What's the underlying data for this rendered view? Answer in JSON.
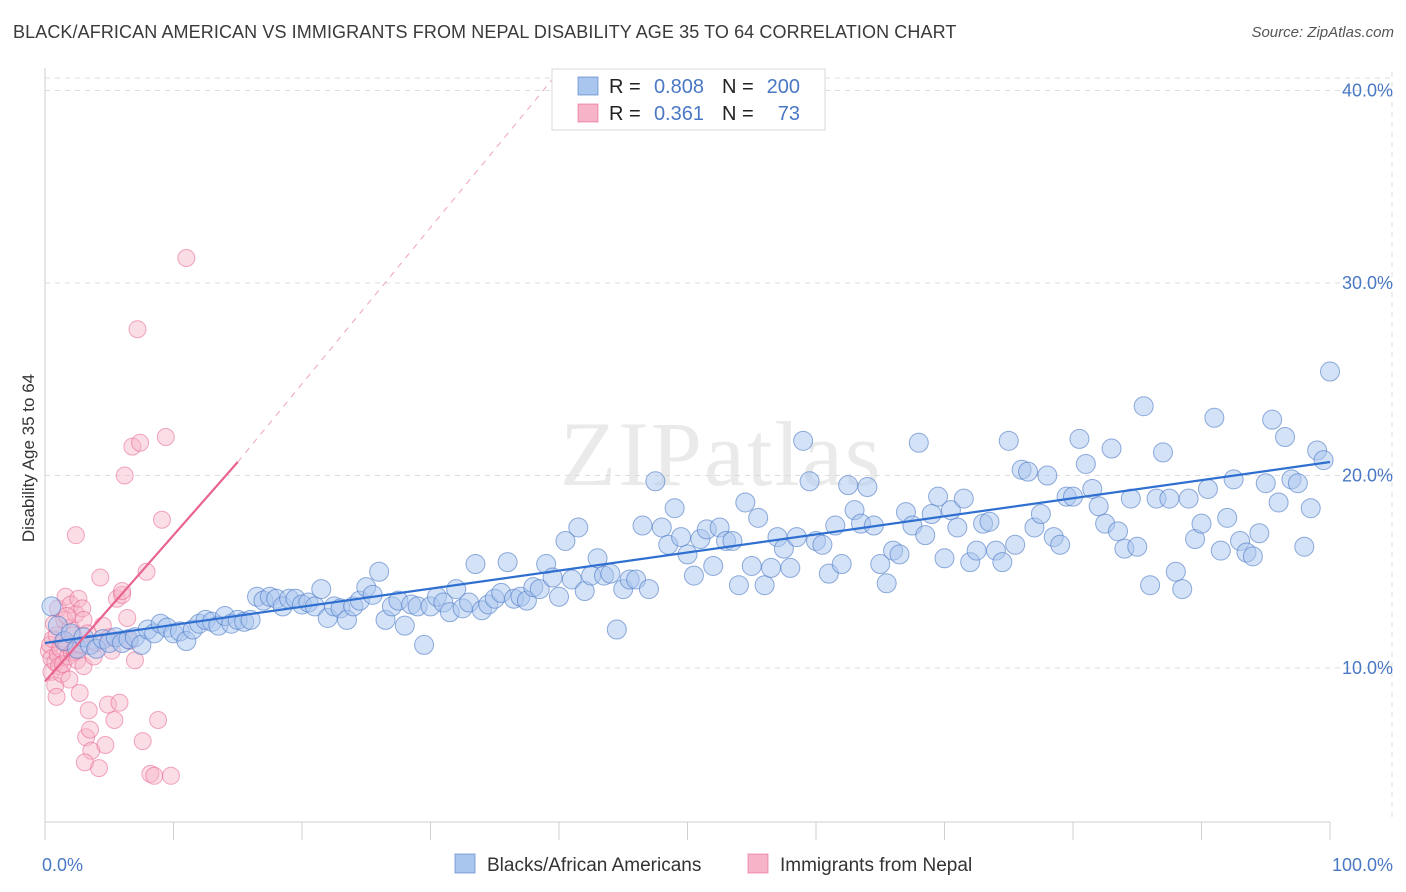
{
  "title": "BLACK/AFRICAN AMERICAN VS IMMIGRANTS FROM NEPAL DISABILITY AGE 35 TO 64 CORRELATION CHART",
  "source": "Source: ZipAtlas.com",
  "watermark": "ZIPatlas",
  "colors": {
    "blue": "#4a78c4",
    "blue_fill": "#a9c6ef",
    "blue_line": "#2f6fd0",
    "pink_fill": "#f7b3c8",
    "pink_line": "#e8638f",
    "grid": "#dcdcdc"
  },
  "legend_top": {
    "rows": [
      {
        "r_label": "R =",
        "r_value": "0.808",
        "n_label": "N =",
        "n_value": "200",
        "color": "blue"
      },
      {
        "r_label": "R =",
        "r_value": "0.361",
        "n_label": "N =",
        "n_value": "73",
        "color": "pink"
      }
    ]
  },
  "legend_bottom": {
    "items": [
      {
        "label": "Blacks/African Americans",
        "color": "blue"
      },
      {
        "label": "Immigrants from Nepal",
        "color": "pink"
      }
    ]
  },
  "chart_data": {
    "type": "scatter",
    "ylabel": "Disability Age 35 to 64",
    "xlim": [
      0,
      100
    ],
    "ylim": [
      2,
      42
    ],
    "y_ticks": [
      {
        "v": 10,
        "label": "10.0%"
      },
      {
        "v": 20,
        "label": "20.0%"
      },
      {
        "v": 30,
        "label": "30.0%"
      },
      {
        "v": 40,
        "label": "40.0%"
      }
    ],
    "x_tick_labels": [
      {
        "v": 0,
        "label": "0.0%"
      },
      {
        "v": 100,
        "label": "100.0%"
      }
    ],
    "series": [
      {
        "name": "Blacks/African Americans",
        "color": "blue",
        "trend": {
          "x": [
            0,
            100
          ],
          "y": [
            11.3,
            20.7
          ],
          "style": "solid"
        },
        "points": [
          [
            0.5,
            13.2
          ],
          [
            1,
            12.2
          ],
          [
            1.5,
            11.4
          ],
          [
            2,
            11.8
          ],
          [
            2.5,
            11
          ],
          [
            3,
            11.6
          ],
          [
            3.5,
            11.2
          ],
          [
            4,
            11
          ],
          [
            4.5,
            11.5
          ],
          [
            5,
            11.3
          ],
          [
            5.5,
            11.6
          ],
          [
            6,
            11.3
          ],
          [
            6.5,
            11.5
          ],
          [
            7,
            11.6
          ],
          [
            7.5,
            11.2
          ],
          [
            8,
            12
          ],
          [
            8.5,
            11.8
          ],
          [
            9,
            12.3
          ],
          [
            9.5,
            12.1
          ],
          [
            10,
            11.8
          ],
          [
            10.5,
            11.9
          ],
          [
            11,
            11.4
          ],
          [
            11.5,
            12
          ],
          [
            12,
            12.3
          ],
          [
            12.5,
            12.5
          ],
          [
            13,
            12.4
          ],
          [
            13.5,
            12.2
          ],
          [
            14,
            12.7
          ],
          [
            14.5,
            12.3
          ],
          [
            15,
            12.5
          ],
          [
            15.5,
            12.4
          ],
          [
            16,
            12.5
          ],
          [
            16.5,
            13.7
          ],
          [
            17,
            13.5
          ],
          [
            17.5,
            13.7
          ],
          [
            18,
            13.6
          ],
          [
            18.5,
            13.2
          ],
          [
            19,
            13.6
          ],
          [
            19.5,
            13.6
          ],
          [
            20,
            13.3
          ],
          [
            20.5,
            13.4
          ],
          [
            21,
            13.2
          ],
          [
            21.5,
            14.1
          ],
          [
            22,
            12.6
          ],
          [
            22.5,
            13.2
          ],
          [
            23,
            13.1
          ],
          [
            23.5,
            12.5
          ],
          [
            24,
            13.2
          ],
          [
            24.5,
            13.5
          ],
          [
            25,
            14.2
          ],
          [
            25.5,
            13.8
          ],
          [
            26,
            15
          ],
          [
            26.5,
            12.5
          ],
          [
            27,
            13.2
          ],
          [
            27.5,
            13.5
          ],
          [
            28,
            12.2
          ],
          [
            28.5,
            13.3
          ],
          [
            29,
            13.2
          ],
          [
            29.5,
            11.2
          ],
          [
            30,
            13.2
          ],
          [
            30.5,
            13.7
          ],
          [
            31,
            13.4
          ],
          [
            31.5,
            12.9
          ],
          [
            32,
            14.1
          ],
          [
            32.5,
            13.1
          ],
          [
            33,
            13.4
          ],
          [
            33.5,
            15.4
          ],
          [
            34,
            13
          ],
          [
            34.5,
            13.3
          ],
          [
            35,
            13.6
          ],
          [
            35.5,
            13.9
          ],
          [
            36,
            15.5
          ],
          [
            36.5,
            13.6
          ],
          [
            37,
            13.7
          ],
          [
            37.5,
            13.5
          ],
          [
            38,
            14.2
          ],
          [
            38.5,
            14.1
          ],
          [
            39,
            15.4
          ],
          [
            39.5,
            14.7
          ],
          [
            40,
            13.7
          ],
          [
            40.5,
            16.6
          ],
          [
            41,
            14.6
          ],
          [
            41.5,
            17.3
          ],
          [
            42,
            14
          ],
          [
            42.5,
            14.8
          ],
          [
            43,
            15.7
          ],
          [
            43.5,
            14.8
          ],
          [
            44,
            14.9
          ],
          [
            44.5,
            12
          ],
          [
            45,
            14.1
          ],
          [
            45.5,
            14.6
          ],
          [
            46,
            14.6
          ],
          [
            46.5,
            17.4
          ],
          [
            47,
            14.1
          ],
          [
            47.5,
            19.7
          ],
          [
            48,
            17.3
          ],
          [
            48.5,
            16.4
          ],
          [
            49,
            18.3
          ],
          [
            49.5,
            16.8
          ],
          [
            50,
            15.9
          ],
          [
            50.5,
            14.8
          ],
          [
            51,
            16.7
          ],
          [
            51.5,
            17.2
          ],
          [
            52,
            15.3
          ],
          [
            52.5,
            17.3
          ],
          [
            53,
            16.6
          ],
          [
            53.5,
            16.6
          ],
          [
            54,
            14.3
          ],
          [
            54.5,
            18.6
          ],
          [
            55,
            15.3
          ],
          [
            55.5,
            17.8
          ],
          [
            56,
            14.3
          ],
          [
            56.5,
            15.2
          ],
          [
            57,
            16.8
          ],
          [
            57.5,
            16.2
          ],
          [
            58,
            15.2
          ],
          [
            58.5,
            16.8
          ],
          [
            59,
            21.8
          ],
          [
            59.5,
            19.7
          ],
          [
            60,
            16.6
          ],
          [
            60.5,
            16.4
          ],
          [
            61,
            14.9
          ],
          [
            61.5,
            17.4
          ],
          [
            62,
            15.4
          ],
          [
            62.5,
            19.5
          ],
          [
            63,
            18.2
          ],
          [
            63.5,
            17.5
          ],
          [
            64,
            19.4
          ],
          [
            64.5,
            17.4
          ],
          [
            65,
            15.4
          ],
          [
            65.5,
            14.4
          ],
          [
            66,
            16.1
          ],
          [
            66.5,
            15.9
          ],
          [
            67,
            18.1
          ],
          [
            67.5,
            17.4
          ],
          [
            68,
            21.7
          ],
          [
            68.5,
            16.9
          ],
          [
            69,
            18
          ],
          [
            69.5,
            18.9
          ],
          [
            70,
            15.7
          ],
          [
            70.5,
            18.2
          ],
          [
            71,
            17.3
          ],
          [
            71.5,
            18.8
          ],
          [
            72,
            15.5
          ],
          [
            72.5,
            16.1
          ],
          [
            73,
            17.5
          ],
          [
            73.5,
            17.6
          ],
          [
            74,
            16.1
          ],
          [
            74.5,
            15.5
          ],
          [
            75,
            21.8
          ],
          [
            75.5,
            16.4
          ],
          [
            76,
            20.3
          ],
          [
            76.5,
            20.2
          ],
          [
            77,
            17.3
          ],
          [
            77.5,
            18
          ],
          [
            78,
            20
          ],
          [
            78.5,
            16.8
          ],
          [
            79,
            16.4
          ],
          [
            79.5,
            18.9
          ],
          [
            80,
            18.9
          ],
          [
            80.5,
            21.9
          ],
          [
            81,
            20.6
          ],
          [
            81.5,
            19.3
          ],
          [
            82,
            18.4
          ],
          [
            82.5,
            17.5
          ],
          [
            83,
            21.4
          ],
          [
            83.5,
            17.1
          ],
          [
            84,
            16.2
          ],
          [
            84.5,
            18.8
          ],
          [
            85,
            16.3
          ],
          [
            85.5,
            23.6
          ],
          [
            86,
            14.3
          ],
          [
            86.5,
            18.8
          ],
          [
            87,
            21.2
          ],
          [
            87.5,
            18.8
          ],
          [
            88,
            15
          ],
          [
            88.5,
            14.1
          ],
          [
            89,
            18.8
          ],
          [
            89.5,
            16.7
          ],
          [
            90,
            17.5
          ],
          [
            90.5,
            19.3
          ],
          [
            91,
            23
          ],
          [
            91.5,
            16.1
          ],
          [
            92,
            17.8
          ],
          [
            92.5,
            19.8
          ],
          [
            93,
            16.6
          ],
          [
            93.5,
            16
          ],
          [
            94,
            15.8
          ],
          [
            94.5,
            17
          ],
          [
            95,
            19.6
          ],
          [
            95.5,
            22.9
          ],
          [
            96,
            18.6
          ],
          [
            96.5,
            22
          ],
          [
            97,
            19.8
          ],
          [
            97.5,
            19.6
          ],
          [
            98,
            16.3
          ],
          [
            98.5,
            18.3
          ],
          [
            99,
            21.3
          ],
          [
            99.5,
            20.8
          ],
          [
            100,
            25.4
          ]
        ]
      },
      {
        "name": "Immigrants from Nepal",
        "color": "pink",
        "trend": {
          "x": [
            0,
            15
          ],
          "y": [
            9.3,
            20.7
          ],
          "style": "solid",
          "extension": {
            "x": [
              15,
              40
            ],
            "y": [
              20.7,
              41
            ]
          }
        },
        "points": [
          [
            0.3,
            10.9
          ],
          [
            0.4,
            11.2
          ],
          [
            0.5,
            10.5
          ],
          [
            0.5,
            9.8
          ],
          [
            0.6,
            11.5
          ],
          [
            0.7,
            12.3
          ],
          [
            0.8,
            10.3
          ],
          [
            0.8,
            9.1
          ],
          [
            0.9,
            11.7
          ],
          [
            1,
            13.1
          ],
          [
            1,
            10.7
          ],
          [
            1.1,
            10.1
          ],
          [
            1.2,
            11
          ],
          [
            1.3,
            9.7
          ],
          [
            1.4,
            10.2
          ],
          [
            1.5,
            12.5
          ],
          [
            1.5,
            11.4
          ],
          [
            1.6,
            13.7
          ],
          [
            1.7,
            11.2
          ],
          [
            1.8,
            10.6
          ],
          [
            1.9,
            9.4
          ],
          [
            2,
            12.1
          ],
          [
            2,
            13.3
          ],
          [
            2.1,
            10.8
          ],
          [
            2.2,
            11.7
          ],
          [
            2.3,
            10.9
          ],
          [
            2.4,
            12.8
          ],
          [
            2.5,
            10.4
          ],
          [
            2.6,
            13.6
          ],
          [
            2.7,
            8.7
          ],
          [
            2.8,
            11.2
          ],
          [
            2.9,
            13.1
          ],
          [
            3,
            12.5
          ],
          [
            3,
            10.1
          ],
          [
            3.2,
            6.4
          ],
          [
            3.3,
            11.8
          ],
          [
            3.4,
            7.8
          ],
          [
            3.5,
            6.8
          ],
          [
            3.6,
            5.7
          ],
          [
            3.8,
            10.6
          ],
          [
            4,
            11.3
          ],
          [
            4.2,
            4.8
          ],
          [
            4.3,
            14.7
          ],
          [
            4.5,
            12.2
          ],
          [
            4.7,
            6
          ],
          [
            4.9,
            8.1
          ],
          [
            5,
            11.6
          ],
          [
            5.2,
            10.9
          ],
          [
            5.4,
            7.3
          ],
          [
            5.6,
            13.6
          ],
          [
            5.8,
            8.2
          ],
          [
            6,
            13.8
          ],
          [
            6.2,
            20
          ],
          [
            6.4,
            12.6
          ],
          [
            6.6,
            11.4
          ],
          [
            6.8,
            21.5
          ],
          [
            7,
            10.4
          ],
          [
            7.2,
            27.6
          ],
          [
            7.4,
            21.7
          ],
          [
            7.6,
            6.2
          ],
          [
            7.9,
            15
          ],
          [
            8.2,
            4.5
          ],
          [
            8.5,
            4.4
          ],
          [
            8.8,
            7.3
          ],
          [
            9.1,
            17.7
          ],
          [
            9.4,
            22
          ],
          [
            9.8,
            4.4
          ],
          [
            2.4,
            16.9
          ],
          [
            3.1,
            5.1
          ],
          [
            1.7,
            12.7
          ],
          [
            0.9,
            8.5
          ],
          [
            11,
            31.3
          ],
          [
            6,
            14
          ]
        ]
      }
    ]
  }
}
